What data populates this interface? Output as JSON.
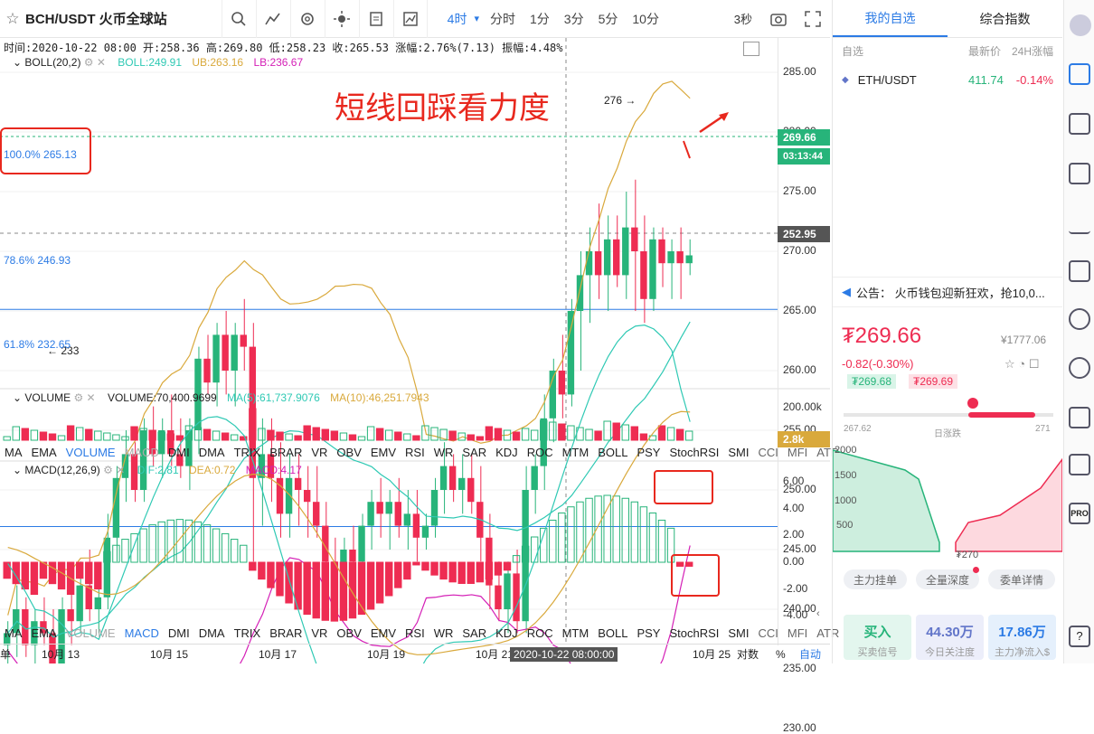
{
  "topbar": {
    "symbol": "BCH/USDT 火币全球站",
    "timeframes": [
      "4时",
      "分时",
      "1分",
      "3分",
      "5分",
      "10分"
    ],
    "refresh": "3秒"
  },
  "ohlc": {
    "line": "时间:2020-10-22 08:00  开:258.36  高:269.80  低:258.23  收:265.53  涨幅:2.76%(7.13)  振幅:4.48%"
  },
  "boll": {
    "name": "BOLL(20,2)",
    "mid": "BOLL:249.91",
    "ub": "UB:263.16",
    "lb": "LB:236.67"
  },
  "annotation": {
    "text": "短线回踩看力度",
    "high_mark": "276",
    "low_mark": "233"
  },
  "fib": {
    "f100": "100.0% 265.13",
    "f786": "78.6% 246.93",
    "f618": "61.8% 232.65"
  },
  "price_axis": [
    "285.00",
    "280.00",
    "275.00",
    "270.00",
    "265.00",
    "260.00",
    "255.00",
    "250.00",
    "245.00",
    "240.00",
    "235.00",
    "230.00"
  ],
  "price_tags": {
    "last": "269.66",
    "countdown": "03:13:44",
    "cross": "252.95"
  },
  "volume": {
    "name": "VOLUME",
    "value": "VOLUME:70,400.9699",
    "ma5": "MA(5):61,737.9076",
    "ma10": "MA(10):46,251.7943",
    "axis_top": "200.00k",
    "tag": "2.8k"
  },
  "indicators": [
    "MA",
    "EMA",
    "VOLUME",
    "MACD",
    "DMI",
    "DMA",
    "TRIX",
    "BRAR",
    "VR",
    "OBV",
    "EMV",
    "RSI",
    "WR",
    "SAR",
    "KDJ",
    "ROC",
    "MTM",
    "BOLL",
    "PSY",
    "StochRSI",
    "SMI",
    "CCI",
    "MFI",
    "ATR"
  ],
  "macd": {
    "name": "MACD(12,26,9)",
    "dif": "DIF:2.81",
    "dea": "DEA:0.72",
    "macd": "MACD:4.17",
    "axis": [
      "6.00",
      "4.00",
      "2.00",
      "0.00",
      "-2.00",
      "-4.00"
    ]
  },
  "bottom": {
    "left": "单",
    "dates": [
      "10月 13",
      "10月 15",
      "10月 17",
      "10月 19",
      "10月 21",
      "10月 25"
    ],
    "cursor": "2020-10-22 08:00:00",
    "logscale": "对数",
    "percent": "%",
    "auto": "自动"
  },
  "sidebar": {
    "tab1": "我的自选",
    "tab2": "综合指数",
    "col_name": "自选",
    "col_price": "最新价",
    "col_change": "24H涨幅",
    "row_symbol": "ETH/USDT",
    "row_price": "411.74",
    "row_change": "-0.14%",
    "notice": "公告：  火币钱包迎新狂欢，抢10,0...",
    "price": "₮269.66",
    "cny": "¥1777.06",
    "change": "-0.82(-0.30%)",
    "bid": "₮269.68",
    "ask": "₮269.69",
    "range_low": "267.62",
    "range_label": "日涨跌",
    "range_high": "271",
    "depth_y": [
      "2000",
      "1500",
      "1000",
      "500"
    ],
    "depth_x": "₮270",
    "btns": [
      "主力挂单",
      "全量深度",
      "委单详情"
    ],
    "cards": [
      {
        "value": "买入",
        "label": "买卖信号"
      },
      {
        "value": "44.30万",
        "label": "今日关注度"
      },
      {
        "value": "17.86万",
        "label": "主力净流入$"
      }
    ]
  },
  "colors": {
    "up": "#27b47a",
    "down": "#ee2c52",
    "accent": "#2c7be5",
    "boll_up": "#d9a93c",
    "boll_mid": "#2fc9b4",
    "boll_low": "#d41fb6"
  },
  "chart_data": {
    "type": "candlestick",
    "candles": [
      [
        237,
        239,
        235,
        238
      ],
      [
        238,
        242,
        236,
        240
      ],
      [
        240,
        241,
        236,
        237
      ],
      [
        237,
        240,
        235,
        239
      ],
      [
        239,
        241,
        237,
        238
      ],
      [
        238,
        240,
        233,
        234
      ],
      [
        234,
        241,
        233,
        240
      ],
      [
        240,
        242,
        237,
        239
      ],
      [
        239,
        244,
        238,
        242
      ],
      [
        242,
        245,
        239,
        240
      ],
      [
        240,
        243,
        238,
        241
      ],
      [
        241,
        248,
        240,
        246
      ],
      [
        246,
        252,
        244,
        251
      ],
      [
        251,
        255,
        249,
        253
      ],
      [
        253,
        254,
        249,
        250
      ],
      [
        250,
        256,
        249,
        255
      ],
      [
        255,
        257,
        252,
        253
      ],
      [
        253,
        256,
        251,
        255
      ],
      [
        255,
        258,
        252,
        253
      ],
      [
        253,
        256,
        251,
        252
      ],
      [
        252,
        256,
        250,
        255
      ],
      [
        255,
        262,
        253,
        261
      ],
      [
        261,
        263,
        258,
        259
      ],
      [
        259,
        264,
        257,
        263
      ],
      [
        263,
        265,
        258,
        260
      ],
      [
        260,
        264,
        257,
        263
      ],
      [
        263,
        266,
        260,
        262
      ],
      [
        262,
        264,
        244,
        251
      ],
      [
        251,
        256,
        247,
        253
      ],
      [
        253,
        256,
        249,
        251
      ],
      [
        251,
        254,
        246,
        248
      ],
      [
        248,
        253,
        246,
        251
      ],
      [
        251,
        253,
        247,
        250
      ],
      [
        250,
        252,
        246,
        249
      ],
      [
        249,
        252,
        246,
        247
      ],
      [
        247,
        249,
        242,
        244
      ],
      [
        244,
        246,
        241,
        242
      ],
      [
        242,
        246,
        241,
        245
      ],
      [
        245,
        247,
        243,
        244
      ],
      [
        244,
        248,
        242,
        247
      ],
      [
        247,
        250,
        245,
        249
      ],
      [
        249,
        251,
        246,
        248
      ],
      [
        248,
        250,
        245,
        249
      ],
      [
        249,
        251,
        246,
        247
      ],
      [
        247,
        250,
        245,
        248
      ],
      [
        248,
        250,
        244,
        246
      ],
      [
        246,
        248,
        245,
        247
      ],
      [
        247,
        251,
        246,
        250
      ],
      [
        250,
        254,
        248,
        252
      ],
      [
        252,
        253,
        249,
        250
      ],
      [
        250,
        253,
        248,
        251
      ],
      [
        251,
        253,
        248,
        249
      ],
      [
        249,
        252,
        244,
        246
      ],
      [
        246,
        248,
        240,
        242
      ],
      [
        242,
        244,
        239,
        240
      ],
      [
        240,
        244,
        238,
        243
      ],
      [
        243,
        245,
        238,
        239
      ],
      [
        239,
        252,
        238,
        250
      ],
      [
        250,
        253,
        248,
        252
      ],
      [
        252,
        258,
        250,
        256
      ],
      [
        256,
        261,
        254,
        260
      ],
      [
        260,
        263,
        256,
        258
      ],
      [
        258,
        266,
        257,
        265
      ],
      [
        265,
        270,
        260,
        268
      ],
      [
        268,
        272,
        264,
        270
      ],
      [
        270,
        274,
        266,
        268
      ],
      [
        268,
        273,
        265,
        271
      ],
      [
        271,
        273,
        267,
        268
      ],
      [
        268,
        275,
        266,
        272
      ],
      [
        272,
        276,
        265,
        270
      ],
      [
        270,
        273,
        264,
        266
      ],
      [
        266,
        272,
        265,
        271
      ],
      [
        271,
        272,
        267,
        269
      ],
      [
        269,
        271,
        266,
        270
      ],
      [
        270,
        272,
        266,
        269
      ],
      [
        269,
        271,
        268,
        269.66
      ]
    ]
  }
}
